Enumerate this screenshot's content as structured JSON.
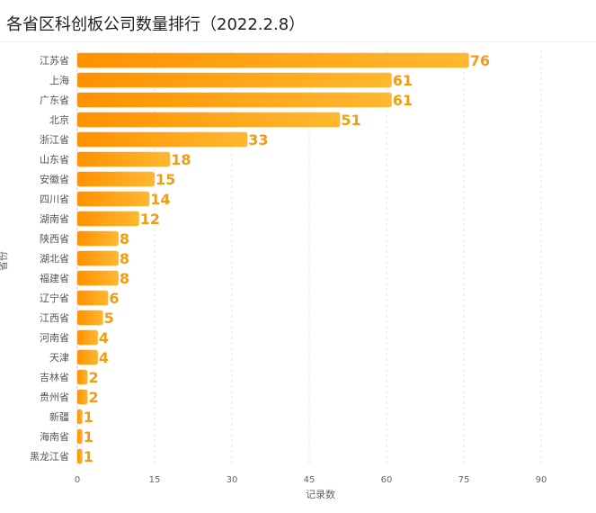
{
  "header": {
    "title": "各省区科创板公司数量排行（2022.2.8）"
  },
  "chart_data": {
    "type": "bar",
    "orientation": "horizontal",
    "title": "各省区科创板公司数量排行（2022.2.8）",
    "xlabel": "记录数",
    "ylabel": "省份",
    "xlim": [
      0,
      90
    ],
    "xticks": [
      0,
      15,
      30,
      45,
      60,
      75,
      90
    ],
    "grid": "vertical-dashed",
    "categories": [
      "江苏省",
      "上海",
      "广东省",
      "北京",
      "浙江省",
      "山东省",
      "安徽省",
      "四川省",
      "湖南省",
      "陕西省",
      "湖北省",
      "福建省",
      "辽宁省",
      "江西省",
      "河南省",
      "天津",
      "吉林省",
      "贵州省",
      "新疆",
      "海南省",
      "黑龙江省"
    ],
    "values": [
      76,
      61,
      61,
      51,
      33,
      18,
      15,
      14,
      12,
      8,
      8,
      8,
      6,
      5,
      4,
      4,
      2,
      2,
      1,
      1,
      1
    ],
    "colors": {
      "bar_start": "#ff9100",
      "bar_end": "#ffb830",
      "label": "#f39c12"
    }
  }
}
